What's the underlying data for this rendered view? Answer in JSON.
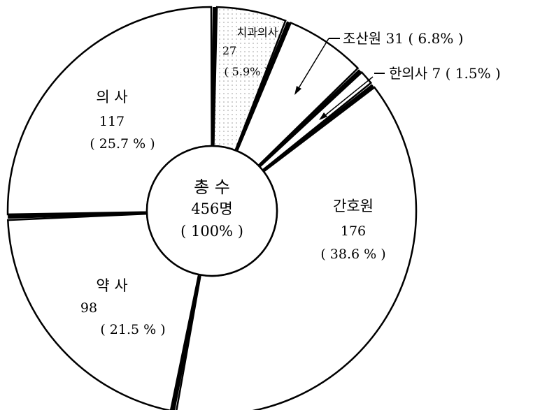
{
  "chart_data": {
    "type": "pie",
    "total": {
      "title": "총 수",
      "value": "456명",
      "percent": "( 100% )"
    },
    "slices": [
      {
        "name": "치과의사",
        "value": 27,
        "percent_label": "( 5.9% )",
        "value_label": "27",
        "pattern": "dotted"
      },
      {
        "name": "조산원",
        "value": 31,
        "percent_label": "( 6.8% )",
        "value_label": "31",
        "pattern": "plain",
        "external": true
      },
      {
        "name": "한의사",
        "value": 7,
        "percent_label": "( 1.5% )",
        "value_label": "7",
        "pattern": "plain",
        "external": true
      },
      {
        "name": "간호원",
        "value": 176,
        "percent_label": "( 38.6 % )",
        "value_label": "176",
        "pattern": "plain"
      },
      {
        "name": "약 사",
        "value": 98,
        "percent_label": "( 21.5 % )",
        "value_label": "98",
        "pattern": "plain"
      },
      {
        "name": "의 사",
        "value": 117,
        "percent_label": "( 25.7 % )",
        "value_label": "117",
        "pattern": "plain"
      }
    ],
    "external_labels": {
      "midwife": "조산원 31 ( 6.8% )",
      "oriental": "한의사 7 ( 1.5% )"
    },
    "colors": {
      "fill": "#ffffff",
      "stroke": "#000000",
      "dot": "#888888"
    }
  }
}
